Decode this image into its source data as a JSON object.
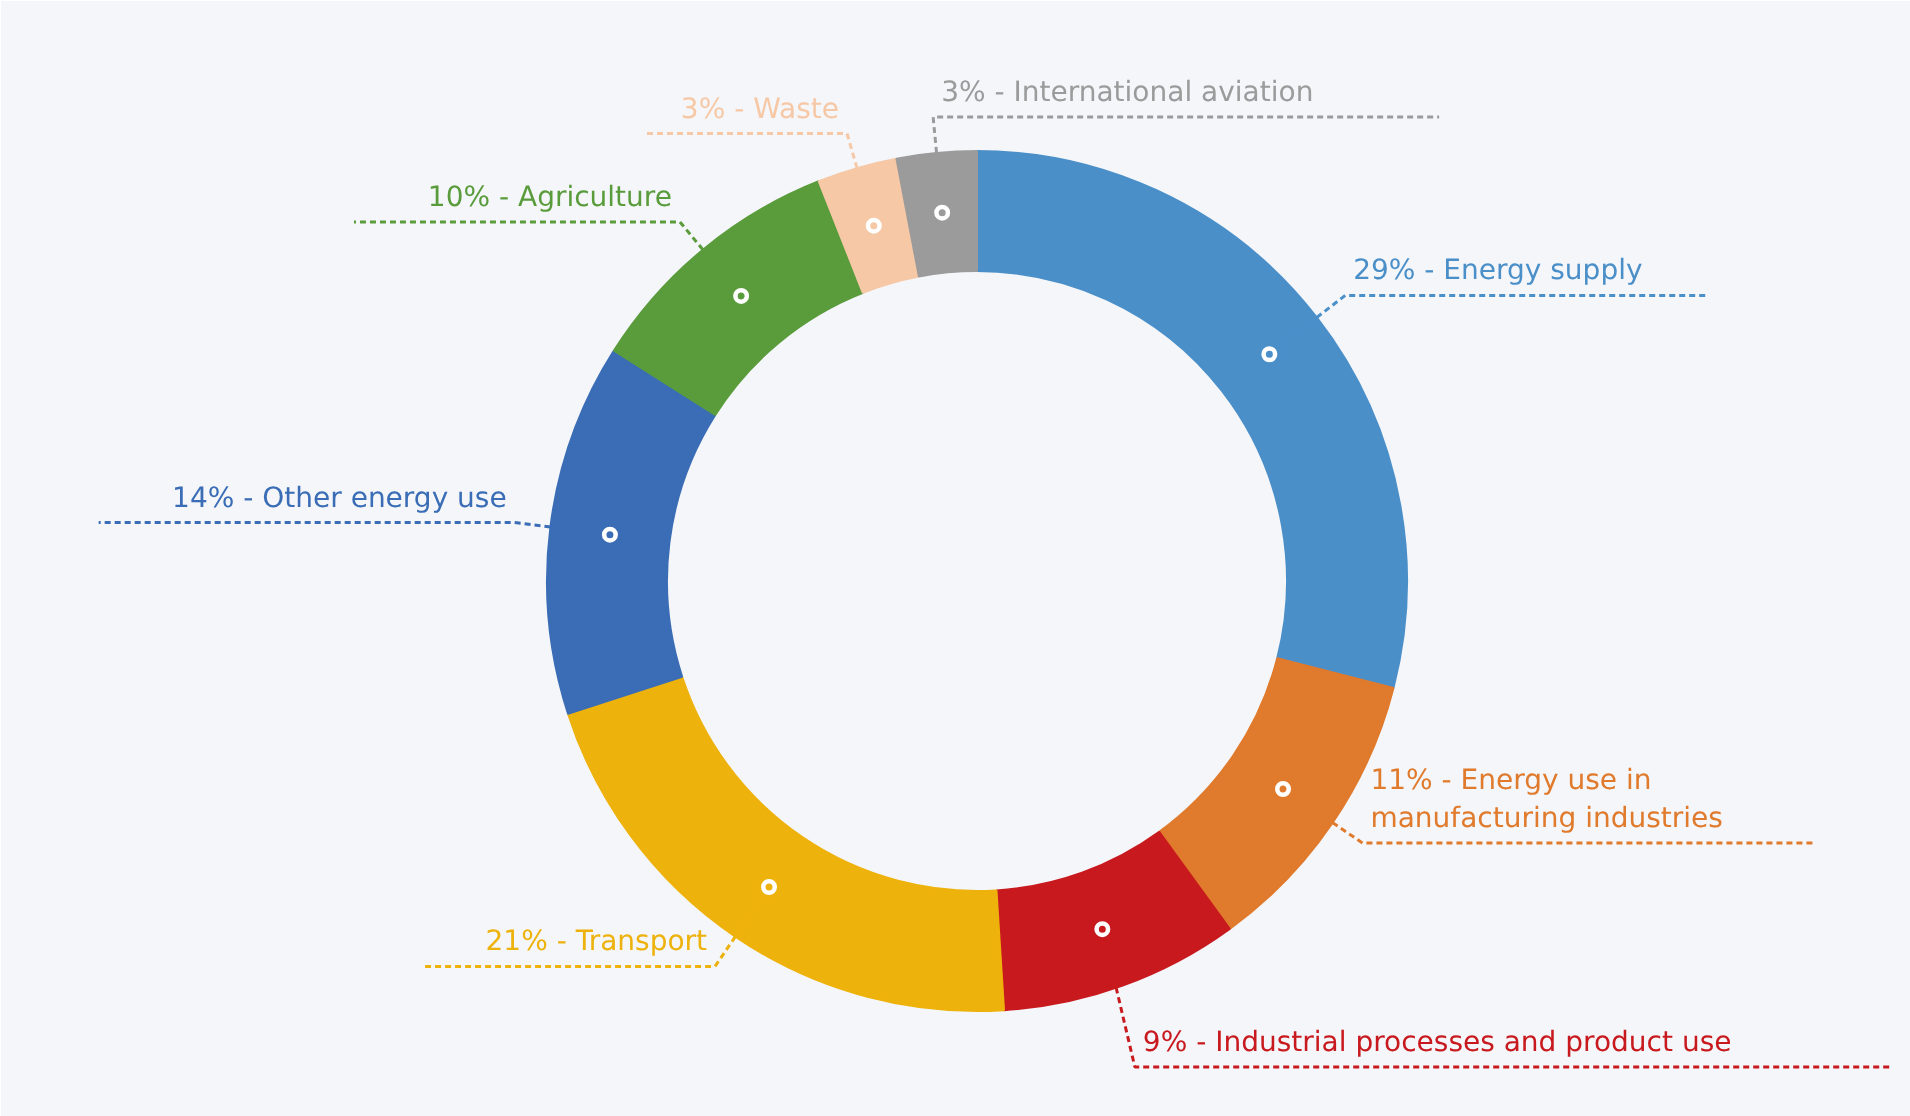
{
  "chart_data": {
    "type": "donut",
    "categories": [
      "Energy supply",
      "Energy use in manufacturing industries",
      "Industrial processes and product use",
      "Transport",
      "Other energy use",
      "Agriculture",
      "Waste",
      "International aviation"
    ],
    "values": [
      29,
      11,
      9,
      21,
      14,
      10,
      3,
      3
    ],
    "value_labels": [
      "29%",
      "11%",
      "9%",
      "21%",
      "14%",
      "10%",
      "3%",
      "3%"
    ],
    "colors": [
      "#4b8fc9",
      "#e07a2c",
      "#c81a1e",
      "#eeb20c",
      "#3a6db5",
      "#5a9c3c",
      "#f6c8a6",
      "#9b9b9b"
    ]
  }
}
